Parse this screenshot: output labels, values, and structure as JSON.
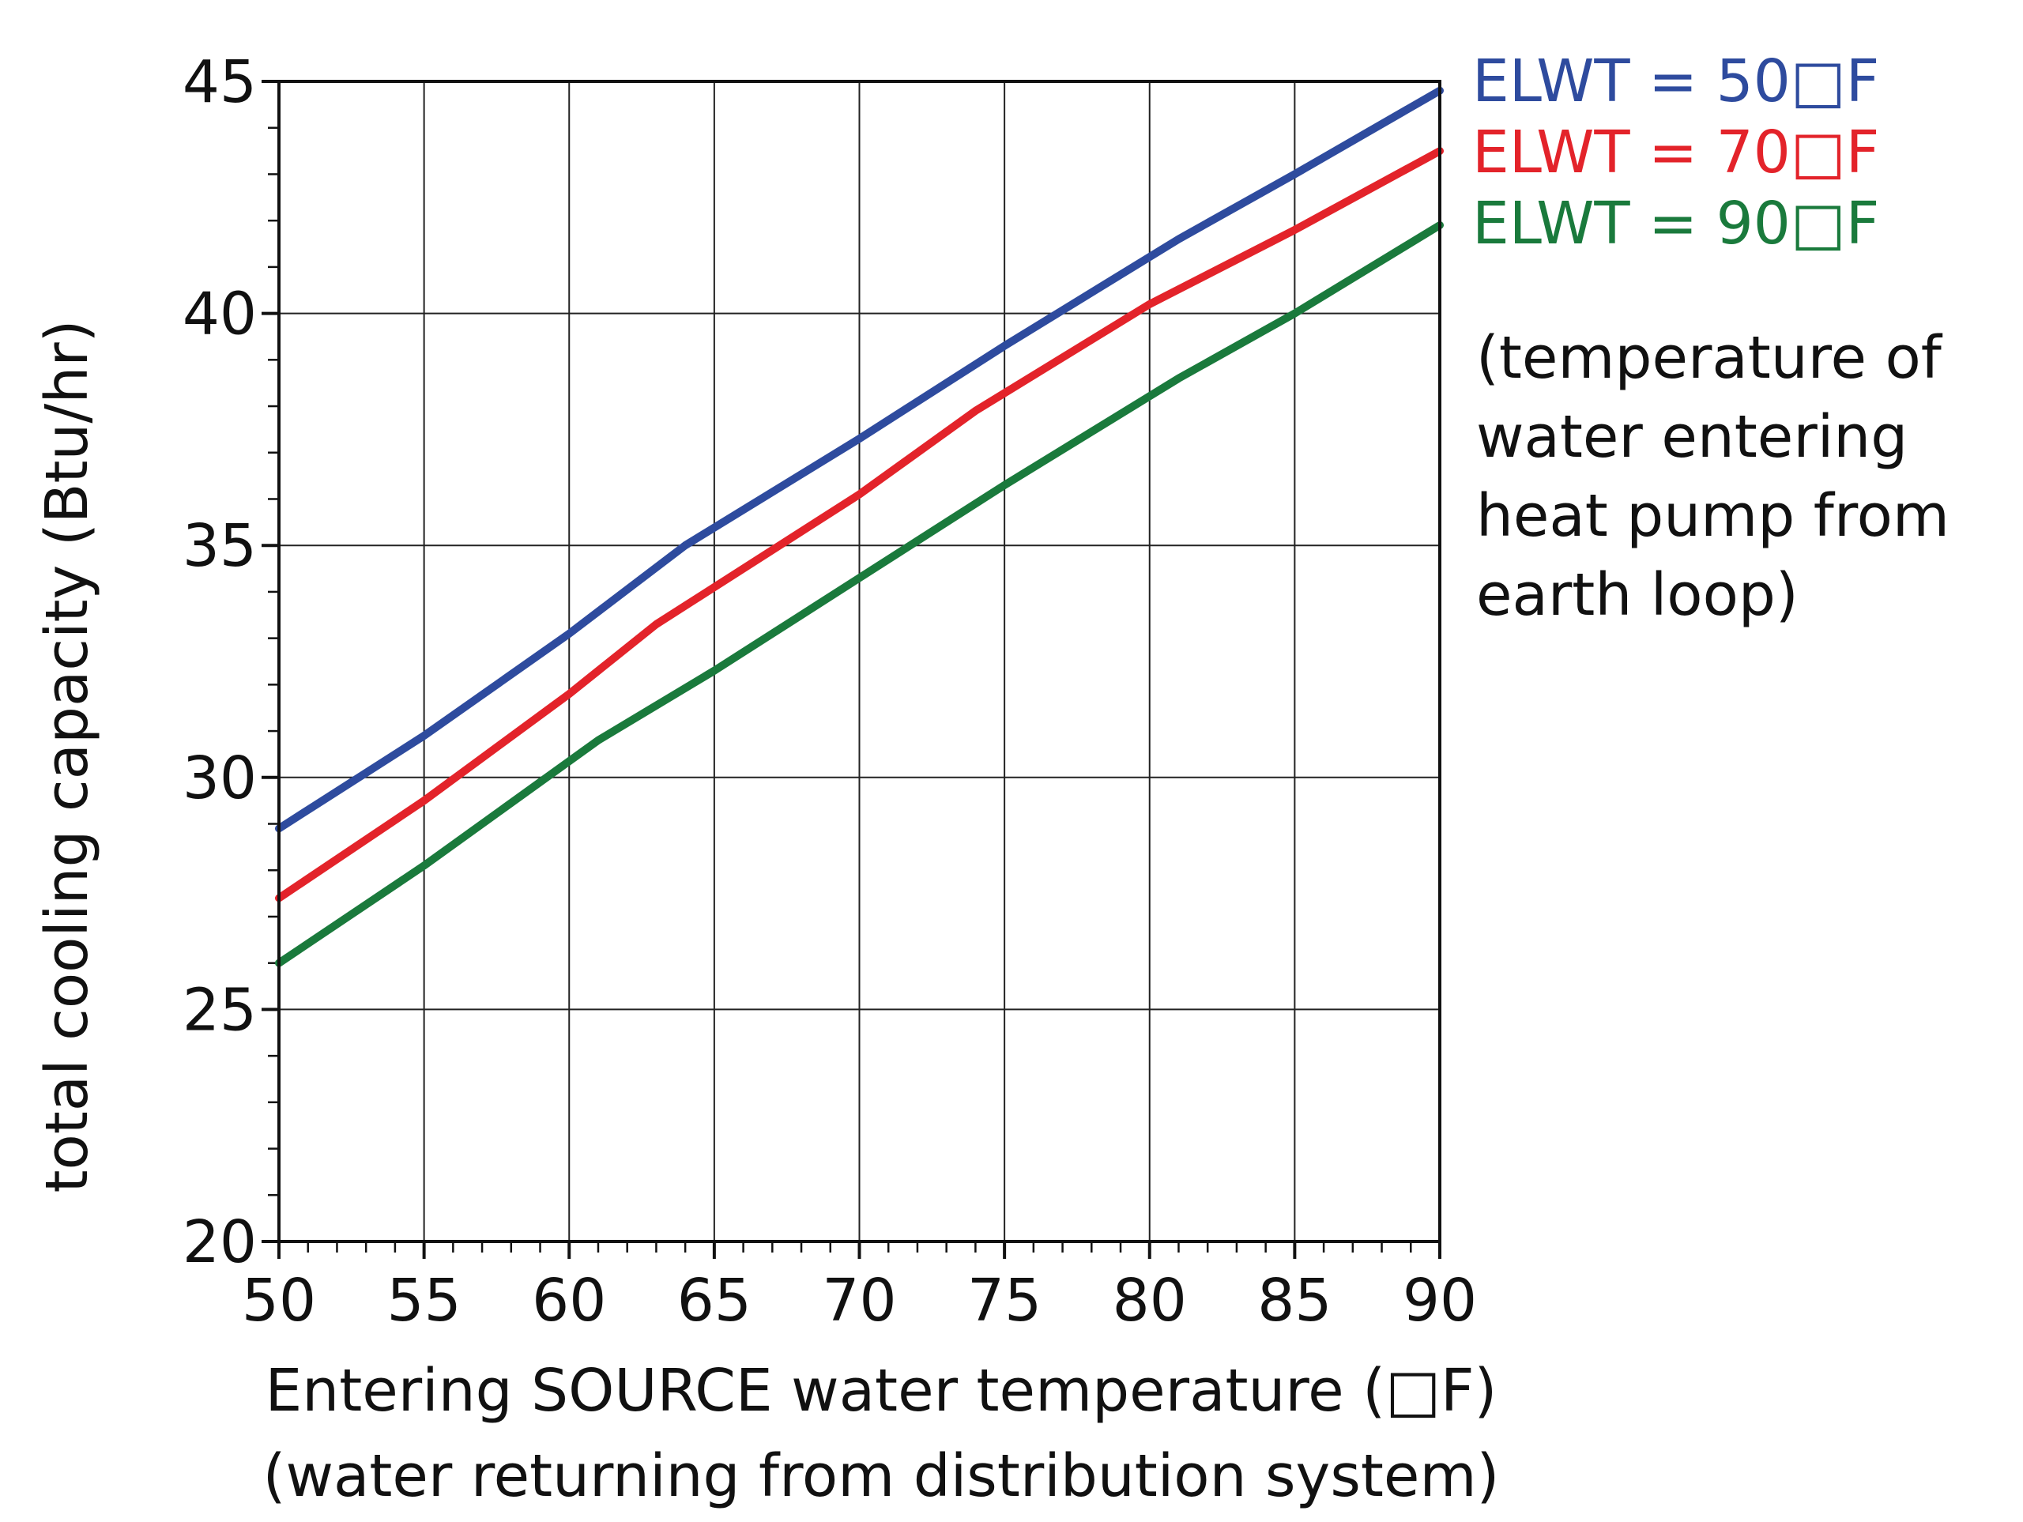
{
  "chart_data": {
    "type": "line",
    "title": "",
    "xlabel": "Entering SOURCE water temperature (□F)",
    "xlabel_sub": "(water returning from distribution system)",
    "ylabel": "total cooling capacity (Btu/hr)",
    "xlim": [
      50,
      90
    ],
    "ylim": [
      20,
      45
    ],
    "x_ticks": [
      "50",
      "55",
      "60",
      "65",
      "70",
      "75",
      "80",
      "85",
      "90"
    ],
    "y_ticks": [
      "20",
      "25",
      "30",
      "35",
      "40",
      "45"
    ],
    "grid": true,
    "legend_position": "top-right",
    "series": [
      {
        "name": "ELWT = 50□F",
        "color": "#2e4b9e",
        "x": [
          50,
          55,
          60,
          64,
          70,
          75,
          81,
          85,
          90
        ],
        "y": [
          28.9,
          30.9,
          33.1,
          35.0,
          37.3,
          39.3,
          41.6,
          43.0,
          44.8
        ]
      },
      {
        "name": "ELWT = 70□F",
        "color": "#e3232a",
        "x": [
          50,
          55,
          60,
          63,
          70,
          74,
          80,
          85,
          90
        ],
        "y": [
          27.4,
          29.5,
          31.8,
          33.3,
          36.1,
          37.9,
          40.2,
          41.8,
          43.5
        ]
      },
      {
        "name": "ELWT = 90□F",
        "color": "#1a7a3c",
        "x": [
          50,
          55,
          61,
          65,
          70,
          75,
          81,
          85,
          90
        ],
        "y": [
          26.0,
          28.1,
          30.8,
          32.3,
          34.3,
          36.3,
          38.6,
          40.0,
          41.9
        ]
      }
    ],
    "annotation": [
      "(temperature of",
      "water entering",
      "heat pump from",
      "earth loop)"
    ]
  }
}
